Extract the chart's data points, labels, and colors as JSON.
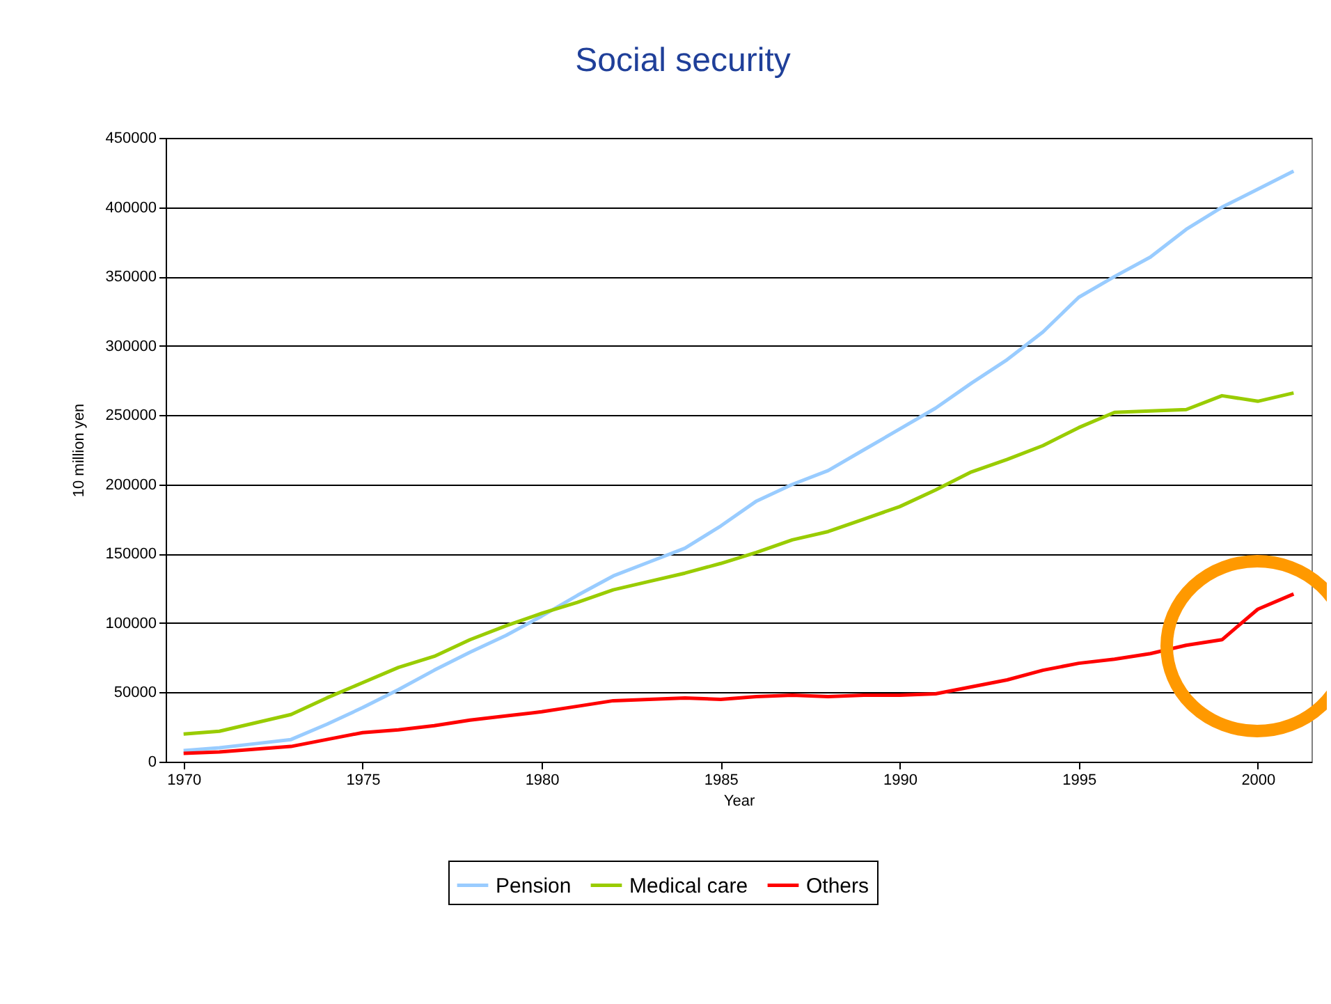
{
  "chart_data": {
    "type": "line",
    "title": "Social security",
    "xlabel": "Year",
    "ylabel": "10 million yen",
    "x": [
      1970,
      1971,
      1972,
      1973,
      1974,
      1975,
      1976,
      1977,
      1978,
      1979,
      1980,
      1981,
      1982,
      1983,
      1984,
      1985,
      1986,
      1987,
      1988,
      1989,
      1990,
      1991,
      1992,
      1993,
      1994,
      1995,
      1996,
      1997,
      1998,
      1999,
      2000,
      2001
    ],
    "series": [
      {
        "name": "Pension",
        "color": "#99ccff",
        "values": [
          8000,
          10000,
          13000,
          16000,
          27000,
          39000,
          52000,
          66000,
          79000,
          91000,
          105000,
          120000,
          134000,
          144000,
          154000,
          170000,
          188000,
          200000,
          210000,
          225000,
          240000,
          255000,
          273000,
          290000,
          310000,
          335000,
          350000,
          364000,
          384000,
          400000,
          413000,
          426000
        ]
      },
      {
        "name": "Medical care",
        "color": "#99cc00",
        "values": [
          20000,
          22000,
          28000,
          34000,
          46000,
          57000,
          68000,
          76000,
          88000,
          98000,
          107000,
          115000,
          124000,
          130000,
          136000,
          143000,
          151000,
          160000,
          166000,
          175000,
          184000,
          196000,
          209000,
          218000,
          228000,
          241000,
          252000,
          253000,
          254000,
          264000,
          260000,
          266000
        ]
      },
      {
        "name": "Others",
        "color": "#ff0000",
        "values": [
          6000,
          7000,
          9000,
          11000,
          16000,
          21000,
          23000,
          26000,
          30000,
          33000,
          36000,
          40000,
          44000,
          45000,
          46000,
          45000,
          47000,
          48000,
          47000,
          48000,
          48000,
          49000,
          54000,
          59000,
          66000,
          71000,
          74000,
          78000,
          84000,
          88000,
          110000,
          121000
        ]
      }
    ],
    "xlim": [
      1969.5,
      2001.5
    ],
    "xticks": [
      1970,
      1975,
      1980,
      1985,
      1990,
      1995,
      2000
    ],
    "ylim": [
      0,
      450000
    ],
    "yticks": [
      0,
      50000,
      100000,
      150000,
      200000,
      250000,
      300000,
      350000,
      400000,
      450000
    ],
    "grid": "y",
    "legend": "bottom",
    "marker": "none",
    "line_style": "solid"
  }
}
